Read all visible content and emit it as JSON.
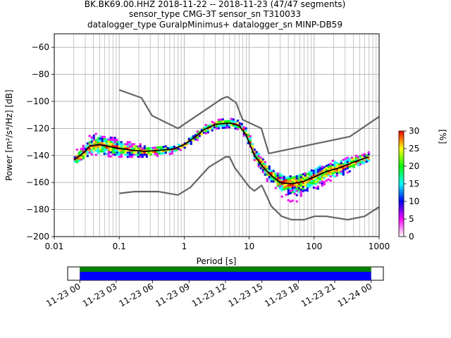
{
  "chart_data": {
    "type": "heatmap",
    "title_lines": [
      "BK.BK69.00.HHZ   2018-11-22 -- 2018-11-23  (47/47 segments)",
      "sensor_type CMG-3T sensor_sn T310033",
      "datalogger_type GuralpMinimus+ datalogger_sn MINP-DB59"
    ],
    "xlabel": "Period [s]",
    "ylabel": "Power [m²/s⁴/Hz] [dB]",
    "xscale": "log",
    "xlim": [
      0.01,
      1000
    ],
    "ylim": [
      -200,
      -50
    ],
    "x_ticks": [
      0.01,
      0.1,
      1,
      10,
      100,
      1000
    ],
    "x_tick_labels": [
      "0.01",
      "0.1",
      "1",
      "10",
      "100",
      "1000"
    ],
    "y_ticks": [
      -200,
      -180,
      -160,
      -140,
      -120,
      -100,
      -80,
      -60
    ],
    "y_tick_labels": [
      "−200",
      "−180",
      "−160",
      "−140",
      "−120",
      "−100",
      "−80",
      "−60"
    ],
    "grid": true,
    "colorbar": {
      "label": "[%]",
      "range": [
        0,
        30
      ],
      "ticks": [
        0,
        5,
        10,
        15,
        20,
        25,
        30
      ],
      "colors": [
        "#ffffff",
        "#ff00ff",
        "#0000ff",
        "#00ffff",
        "#00ff00",
        "#ffff00",
        "#ff0000"
      ]
    },
    "series": [
      {
        "style": "model-high",
        "color": "#666666",
        "x": [
          0.1,
          0.22,
          0.32,
          0.8,
          3.8,
          4.6,
          6.3,
          7.9,
          15.4,
          20,
          354.8,
          1000
        ],
        "y": [
          -91.5,
          -97.4,
          -110.5,
          -120,
          -98,
          -96.5,
          -101,
          -113.5,
          -120,
          -138.5,
          -126,
          -111.3
        ]
      },
      {
        "style": "model-low",
        "color": "#666666",
        "x": [
          0.1,
          0.17,
          0.4,
          0.8,
          1.24,
          2.4,
          4.3,
          5,
          6,
          10,
          12,
          15.6,
          21.9,
          31.6,
          45,
          70,
          101,
          154,
          328,
          600,
          1000
        ],
        "y": [
          -168,
          -166.7,
          -166.7,
          -169.2,
          -163.7,
          -148.6,
          -141.1,
          -141.1,
          -149,
          -163.2,
          -166.2,
          -162.1,
          -177.5,
          -185,
          -187.5,
          -187.5,
          -185,
          -185,
          -187.5,
          -185,
          -178
        ]
      },
      {
        "style": "mode",
        "color": "#000000",
        "x": [
          0.02,
          0.025,
          0.03,
          0.035,
          0.05,
          0.08,
          0.15,
          0.25,
          0.45,
          0.7,
          1.0,
          1.5,
          2.0,
          3.0,
          5.0,
          7.0,
          9.0,
          12.0,
          16.0,
          22.0,
          30.0,
          45.0,
          70.0,
          100.0,
          150.0,
          250.0,
          400.0,
          700.0
        ],
        "y": [
          -143,
          -140,
          -137,
          -133,
          -132,
          -134,
          -136,
          -137,
          -136,
          -135,
          -132,
          -126,
          -121,
          -117,
          -116,
          -118,
          -125,
          -140,
          -148,
          -155,
          -160,
          -161,
          -159,
          -156,
          -152,
          -149,
          -145,
          -141
        ]
      }
    ],
    "pdf_band": {
      "x": [
        0.02,
        0.025,
        0.03,
        0.035,
        0.05,
        0.08,
        0.15,
        0.25,
        0.45,
        0.7,
        1.0,
        1.5,
        2.0,
        3.0,
        5.0,
        7.0,
        9.0,
        12.0,
        16.0,
        22.0,
        30.0,
        45.0,
        70.0,
        100.0,
        150.0,
        250.0,
        400.0,
        700.0
      ],
      "low": [
        -146,
        -143,
        -141,
        -139,
        -140,
        -141,
        -141,
        -141,
        -140,
        -138,
        -134,
        -129,
        -124,
        -120,
        -119,
        -121,
        -129,
        -145,
        -156,
        -163,
        -170,
        -175,
        -172,
        -166,
        -160,
        -155,
        -150,
        -145
      ],
      "high": [
        -137,
        -133,
        -128,
        -123,
        -124,
        -126,
        -130,
        -132,
        -133,
        -133,
        -129,
        -122,
        -117,
        -113,
        -112,
        -114,
        -120,
        -134,
        -143,
        -150,
        -154,
        -155,
        -153,
        -150,
        -145,
        -142,
        -140,
        -137
      ]
    }
  },
  "timeline": {
    "labels": [
      "11-23 00",
      "11-23 03",
      "11-23 06",
      "11-23 09",
      "11-23 12",
      "11-23 15",
      "11-23 18",
      "11-23 21",
      "11-24 00"
    ],
    "range_hours": [
      -2,
      50
    ],
    "coverage_hours": [
      0,
      48
    ],
    "colors": {
      "data": "#0000ff",
      "ok": "#008000"
    }
  }
}
